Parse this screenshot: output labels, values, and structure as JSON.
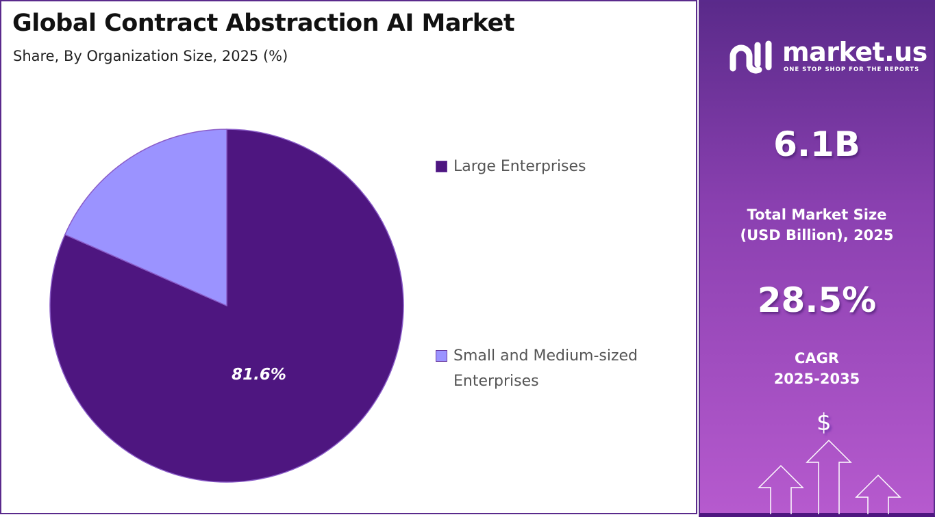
{
  "header": {
    "title": "Global Contract Abstraction AI Market",
    "subtitle": "Share, By Organization Size, 2025 (%)"
  },
  "chart_data": {
    "type": "pie",
    "title": "Global Contract Abstraction AI Market",
    "subtitle": "Share, By Organization Size, 2025 (%)",
    "categories": [
      "Large Enterprises",
      "Small and Medium-sized Enterprises"
    ],
    "values": [
      81.6,
      18.4
    ],
    "colors": [
      "#4e1680",
      "#9b93ff"
    ],
    "data_labels": [
      "81.6%",
      ""
    ],
    "legend": {
      "placement": "right",
      "entries": [
        "Large Enterprises",
        "Small and Medium-sized Enterprises"
      ]
    }
  },
  "sidebar": {
    "brand": "market.us",
    "tagline": "ONE STOP SHOP FOR THE REPORTS",
    "market_size": "6.1B",
    "market_size_label": "Total Market Size (USD Billion), 2025",
    "cagr": "28.5%",
    "cagr_label": "CAGR",
    "cagr_period": "2025-2035",
    "icon": "dollar-growth-arrows-icon",
    "symbol": "$"
  }
}
